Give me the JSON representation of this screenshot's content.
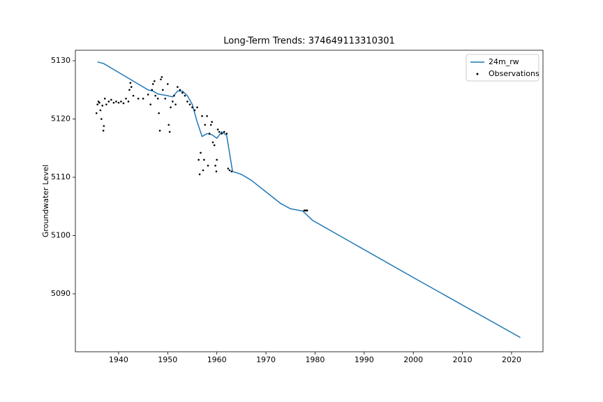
{
  "chart_data": {
    "type": "line",
    "title": "Long-Term Trends: 374649113310301",
    "y_label": "Groundwater Level",
    "xlim": [
      1931.2,
      2026.4
    ],
    "ylim": [
      5080.06,
      5131.8
    ],
    "xticks": [
      1940,
      1950,
      1960,
      1970,
      1980,
      1990,
      2000,
      2010,
      2020
    ],
    "yticks": [
      5090,
      5100,
      5110,
      5120,
      5130
    ],
    "legend": "upper right",
    "series": [
      {
        "name": "24m_rw",
        "color": "#1f77b4",
        "kind": "line",
        "x": [
          1935.7,
          1937,
          1940,
          1943,
          1946,
          1947,
          1948,
          1950,
          1951,
          1952,
          1953,
          1954,
          1955,
          1956,
          1957,
          1958,
          1959,
          1960,
          1961,
          1962,
          1963.2,
          1965,
          1967,
          1970,
          1973,
          1975,
          1977.5,
          1979.5,
          2000,
          2021.8
        ],
        "values": [
          5129.8,
          5129.5,
          5128,
          5126.5,
          5125,
          5124.8,
          5124.3,
          5124,
          5123.8,
          5124.8,
          5124.8,
          5124,
          5122.5,
          5119.5,
          5117,
          5117.5,
          5117.3,
          5116.7,
          5117.8,
          5117.2,
          5111,
          5110.5,
          5109.5,
          5107.5,
          5105.5,
          5104.6,
          5104.2,
          5102.6,
          5092.8,
          5082.5
        ]
      },
      {
        "name": "Observations",
        "color": "#000000",
        "kind": "scatter",
        "x": [
          1935.5,
          1935.7,
          1935.9,
          1936.1,
          1936.3,
          1936.5,
          1936.7,
          1936.9,
          1937.0,
          1937.2,
          1937.5,
          1938,
          1938.5,
          1939,
          1939.5,
          1940,
          1940.5,
          1941,
          1941.5,
          1942,
          1942.2,
          1942.4,
          1942.6,
          1943,
          1944,
          1945,
          1946,
          1946.5,
          1946.8,
          1947,
          1947.3,
          1947.5,
          1948,
          1948.2,
          1948.4,
          1948.6,
          1948.8,
          1949,
          1949.5,
          1950,
          1950.2,
          1950.4,
          1950.6,
          1951,
          1951.3,
          1951.6,
          1952,
          1952.5,
          1953,
          1953.5,
          1954,
          1954.5,
          1955,
          1955.5,
          1956,
          1956.3,
          1956.5,
          1956.7,
          1957,
          1957.2,
          1957.4,
          1957.6,
          1958,
          1958.2,
          1958.5,
          1958.8,
          1959,
          1959.2,
          1959.5,
          1959.7,
          1959.9,
          1960,
          1960.2,
          1960.5,
          1961,
          1961.5,
          1962,
          1962.3,
          1962.6,
          1963,
          1977.8,
          1978.0,
          1978.2,
          1978.4
        ],
        "values": [
          5121,
          5122.5,
          5123,
          5122.8,
          5121.5,
          5120,
          5122.3,
          5118,
          5118.8,
          5123.5,
          5122.5,
          5123,
          5123.3,
          5122.8,
          5123,
          5122.8,
          5123,
          5122.7,
          5123.5,
          5123,
          5125,
          5126.2,
          5125.5,
          5124,
          5123.5,
          5123.5,
          5124.2,
          5122.5,
          5125,
          5126,
          5126.5,
          5124,
          5123.5,
          5121,
          5118,
          5126.8,
          5127.2,
          5125,
          5123.5,
          5126,
          5119,
          5117.8,
          5122,
          5123,
          5124,
          5122.5,
          5125.5,
          5125,
          5124.5,
          5124,
          5123,
          5122.5,
          5122,
          5121.5,
          5122,
          5113,
          5110.5,
          5114.2,
          5120.5,
          5111.2,
          5113,
          5119,
          5120.5,
          5112,
          5117.5,
          5119,
          5119.5,
          5116,
          5115.5,
          5112,
          5111,
          5113,
          5118.2,
          5117.8,
          5117.5,
          5117.8,
          5117.5,
          5111.5,
          5111.2,
          5111,
          5104.3,
          5104.3,
          5104.3,
          5104.3
        ]
      }
    ]
  }
}
